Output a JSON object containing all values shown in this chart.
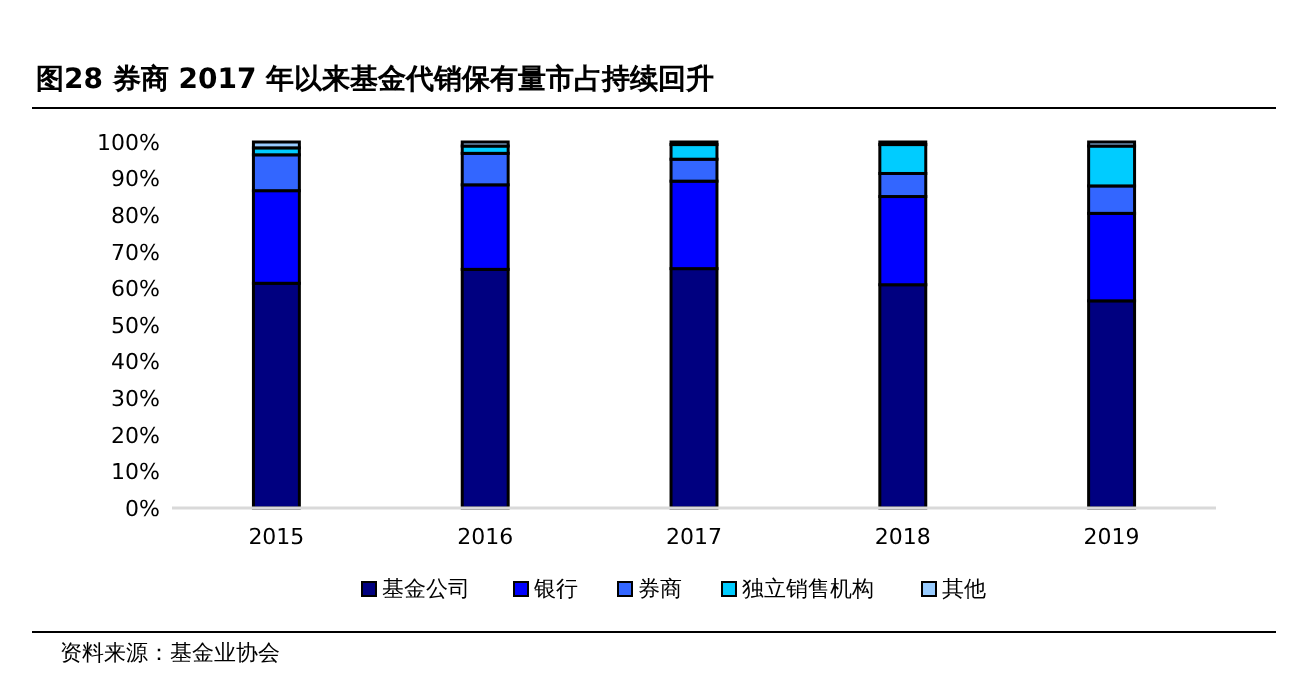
{
  "chart_data": {
    "type": "bar",
    "title": "图28 券商 2017 年以来基金代销保有量市占持续回升",
    "categories": [
      "2015",
      "2016",
      "2017",
      "2018",
      "2019"
    ],
    "stacked": true,
    "ylim": [
      0,
      100
    ],
    "yticks": [
      {
        "value": 0,
        "label": "0%"
      },
      {
        "value": 10,
        "label": "10%"
      },
      {
        "value": 20,
        "label": "20%"
      },
      {
        "value": 30,
        "label": "30%"
      },
      {
        "value": 40,
        "label": "40%"
      },
      {
        "value": 50,
        "label": "50%"
      },
      {
        "value": 60,
        "label": "60%"
      },
      {
        "value": 70,
        "label": "70%"
      },
      {
        "value": 80,
        "label": "80%"
      },
      {
        "value": 90,
        "label": "90%"
      },
      {
        "value": 100,
        "label": "100%"
      }
    ],
    "series": [
      {
        "name": "基金公司",
        "color": "#000080",
        "values": [
          61.4,
          65.2,
          65.4,
          61,
          56.6
        ]
      },
      {
        "name": "银行",
        "color": "#0000ff",
        "values": [
          25.3,
          23.1,
          23.9,
          24.1,
          23.9
        ]
      },
      {
        "name": "券商",
        "color": "#3366ff",
        "values": [
          9.8,
          8.6,
          6,
          6.3,
          7.5
        ]
      },
      {
        "name": "独立销售机构",
        "color": "#00ccff",
        "values": [
          1.9,
          2,
          4,
          7.9,
          10.9
        ]
      },
      {
        "name": "其他",
        "color": "#99ccff",
        "values": [
          1.6,
          1.1,
          0.7,
          0.7,
          1.1
        ]
      }
    ],
    "legend": "bottom",
    "grid": false,
    "annotations": [
      "资料来源：基金业协会"
    ]
  }
}
